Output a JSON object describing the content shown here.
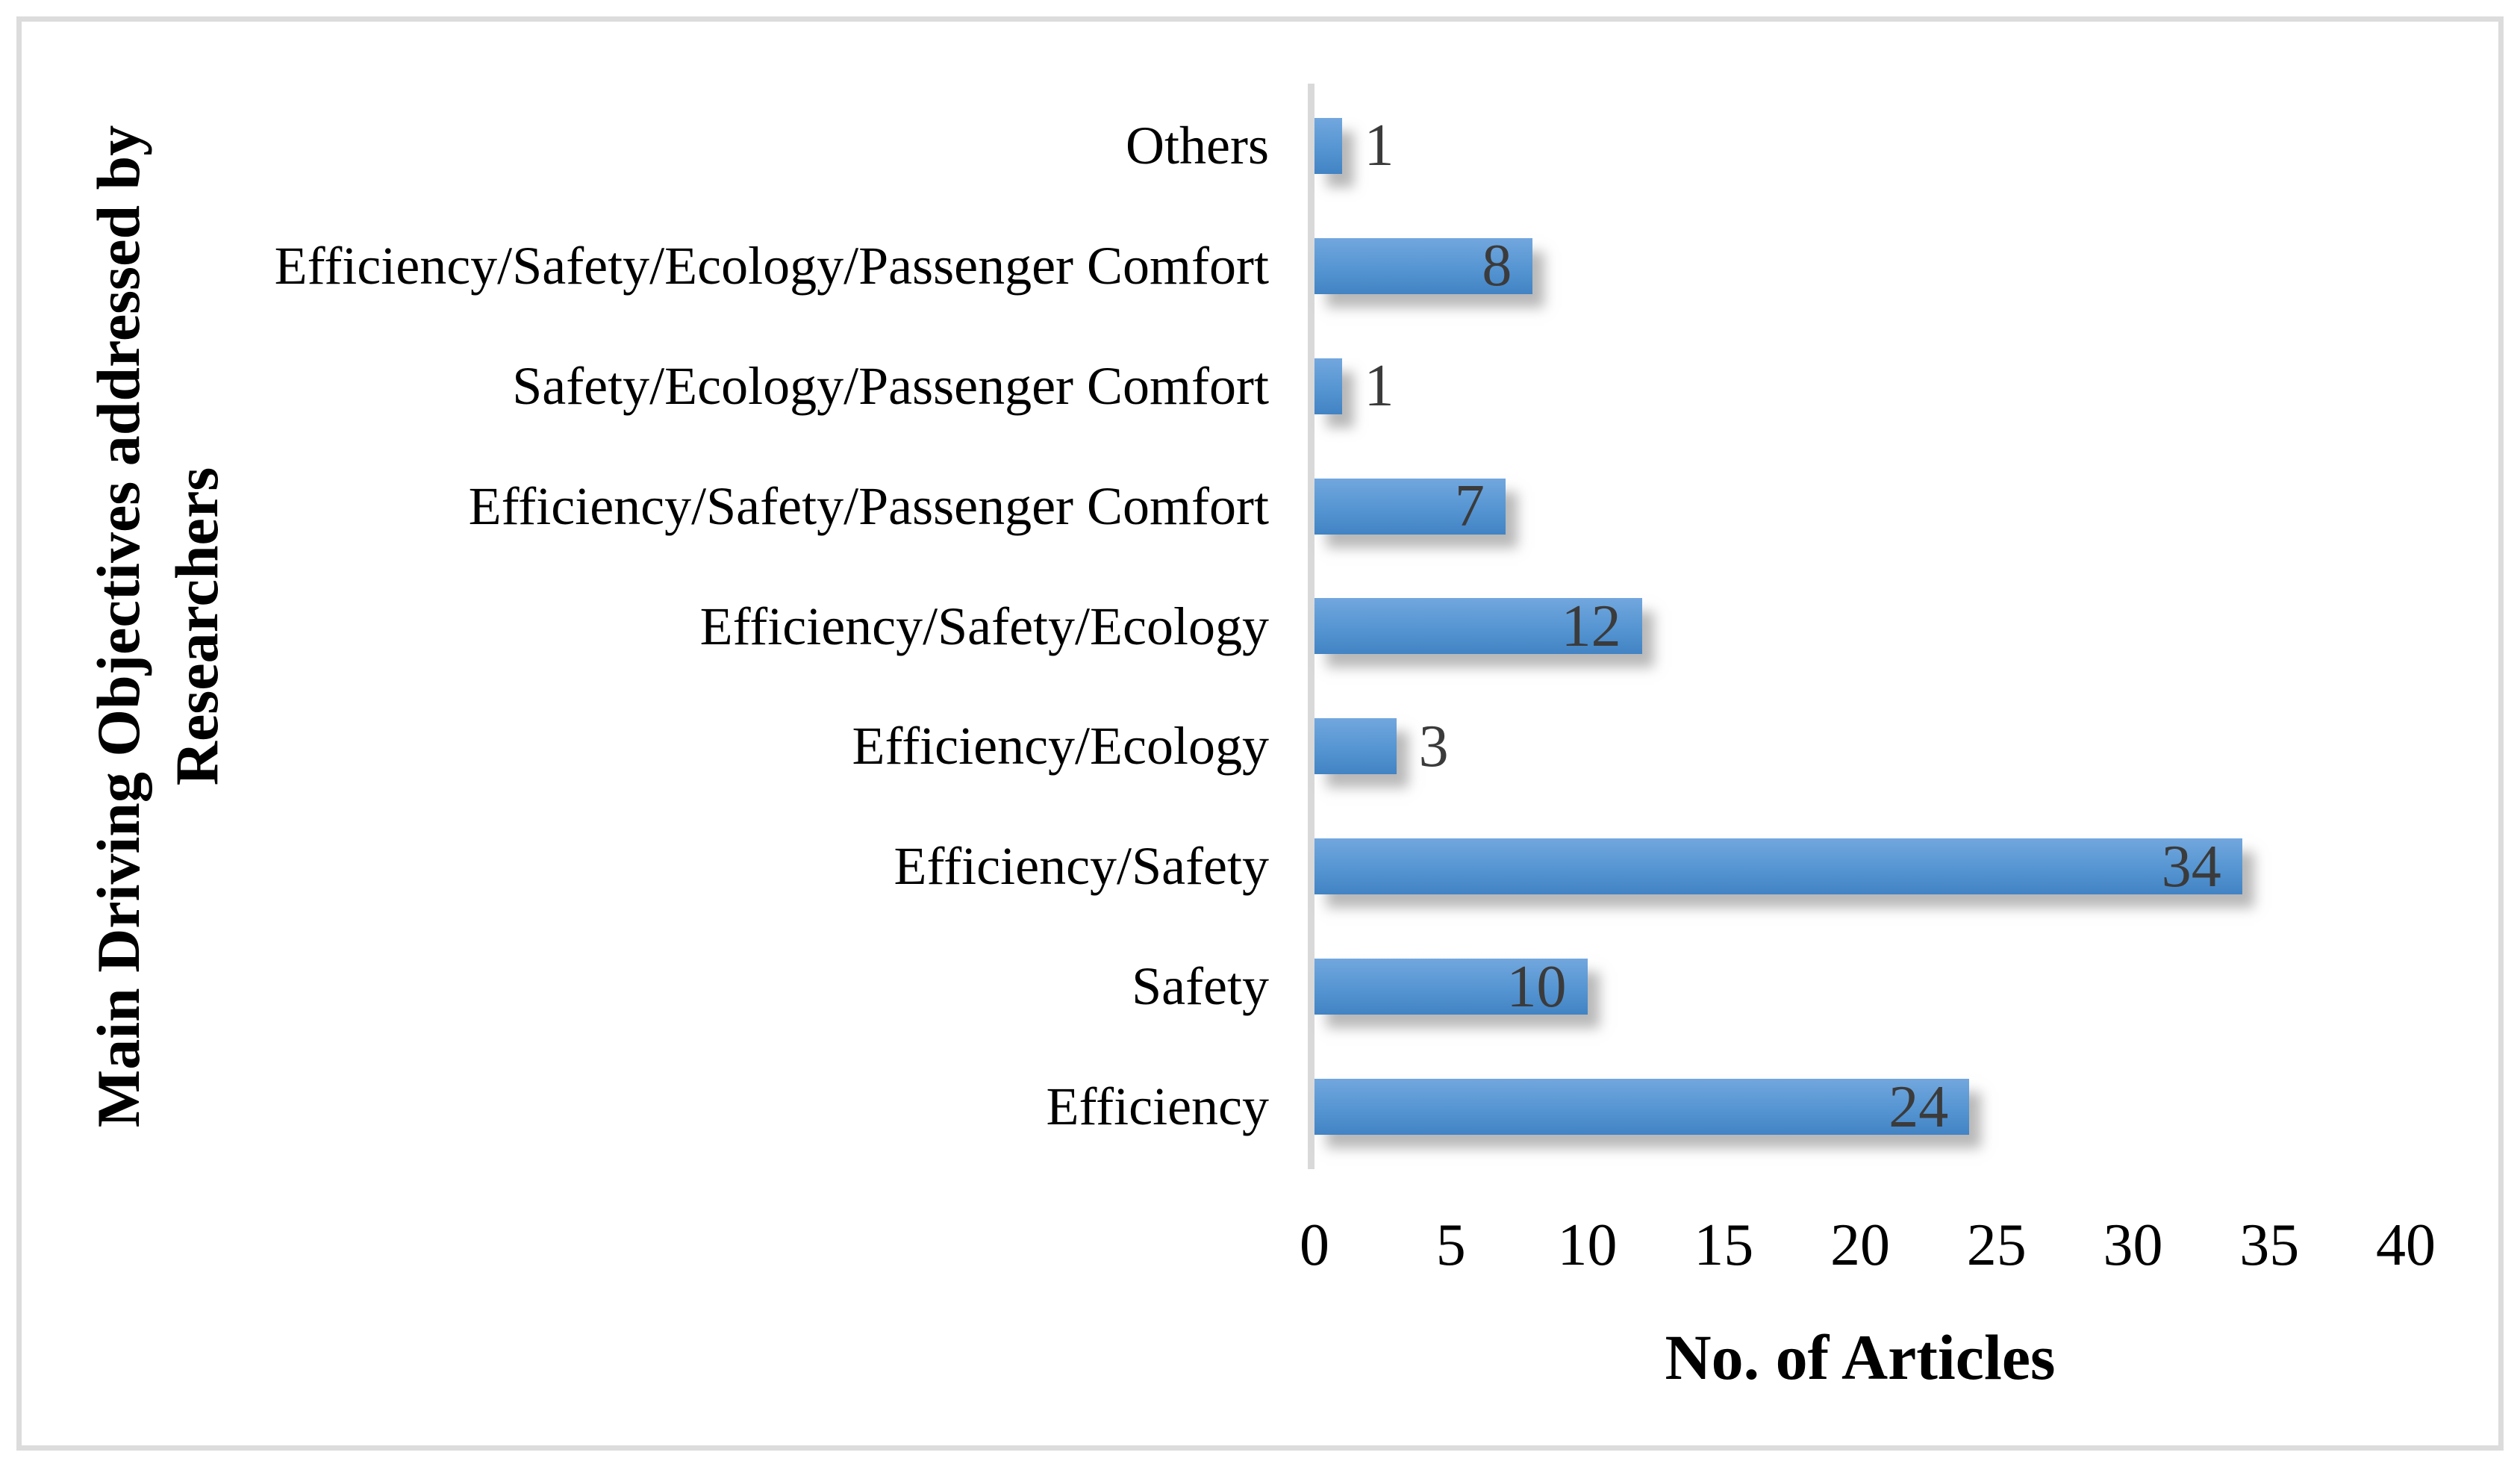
{
  "figure": {
    "x_axis_title": "No. of Articles",
    "y_axis_title_line1": "Main Driving Objectives addressed by",
    "y_axis_title_line2": "Researchers"
  },
  "chart_data": {
    "type": "bar",
    "orientation": "horizontal",
    "title": "",
    "xlabel": "No. of Articles",
    "ylabel": "Main Driving Objectives addressed by Researchers",
    "categories": [
      "Others",
      "Efficiency/Safety/Ecology/Passenger Comfort",
      "Safety/Ecology/Passenger Comfort",
      "Efficiency/Safety/Passenger Comfort",
      "Efficiency/Safety/Ecology",
      "Efficiency/Ecology",
      "Efficiency/Safety",
      "Safety",
      "Efficiency"
    ],
    "values": [
      1,
      8,
      1,
      7,
      12,
      3,
      34,
      10,
      24
    ],
    "xlim": [
      0,
      40
    ],
    "xticks": [
      0,
      5,
      10,
      15,
      20,
      25,
      30,
      35,
      40
    ],
    "grid": false,
    "legend": "none",
    "data_labels": "inside-end-except-small-bars",
    "colors": {
      "bar_gradient_top": "#72a7de",
      "bar_gradient_bottom": "#4283c4",
      "bar_shadow": "#7d7d7d",
      "data_label": "#3b3b3b",
      "axis_line": "#d9d9d9",
      "text": "#000000",
      "frame_border": "#dcdcdc",
      "background": "#ffffff"
    }
  }
}
